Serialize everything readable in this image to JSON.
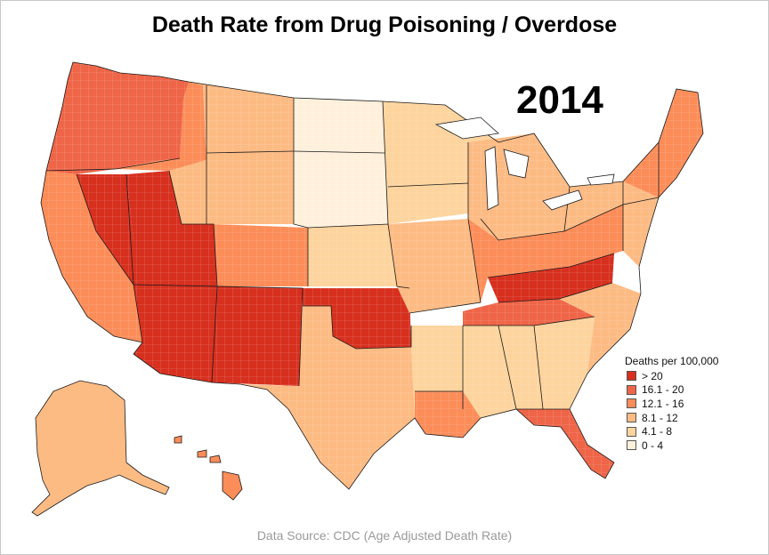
{
  "title": "Death Rate from Drug Poisoning / Overdose",
  "year": "2014",
  "legend": {
    "title": "Deaths per 100,000",
    "items": [
      {
        "label": "> 20",
        "color": "#d7301f"
      },
      {
        "label": "16.1 - 20",
        "color": "#ef6548"
      },
      {
        "label": "12.1 - 16",
        "color": "#fc8d59"
      },
      {
        "label": "8.1 - 12",
        "color": "#fdbb84"
      },
      {
        "label": "4.1 - 8",
        "color": "#fdd49e"
      },
      {
        "label": "0 - 4",
        "color": "#fff0dc"
      }
    ]
  },
  "source": "Data Source: CDC (Age Adjusted Death Rate)",
  "map_data": {
    "type": "choropleth",
    "regions": [
      {
        "region": "Pacific Northwest",
        "class": 1
      },
      {
        "region": "California",
        "class": 2
      },
      {
        "region": "Nevada",
        "class": 0
      },
      {
        "region": "Utah",
        "class": 0
      },
      {
        "region": "Idaho",
        "class": 2
      },
      {
        "region": "Montana",
        "class": 3
      },
      {
        "region": "Wyoming",
        "class": 3
      },
      {
        "region": "Colorado",
        "class": 2
      },
      {
        "region": "Arizona",
        "class": 0
      },
      {
        "region": "New Mexico",
        "class": 0
      },
      {
        "region": "Northern Plains",
        "class": 5
      },
      {
        "region": "Kansas",
        "class": 4
      },
      {
        "region": "Oklahoma",
        "class": 0
      },
      {
        "region": "Texas",
        "class": 3
      },
      {
        "region": "Upper Midwest",
        "class": 4
      },
      {
        "region": "Iowa & Missouri",
        "class": 3
      },
      {
        "region": "Great Lakes",
        "class": 3
      },
      {
        "region": "Ohio Valley",
        "class": 2
      },
      {
        "region": "Kentucky & West Virginia",
        "class": 0
      },
      {
        "region": "Tennessee",
        "class": 1
      },
      {
        "region": "Deep South",
        "class": 4
      },
      {
        "region": "Louisiana",
        "class": 2
      },
      {
        "region": "Florida",
        "class": 1
      },
      {
        "region": "Carolinas",
        "class": 3
      },
      {
        "region": "Mid-Atlantic",
        "class": 3
      },
      {
        "region": "New England",
        "class": 2
      },
      {
        "region": "Alaska",
        "class": 3
      },
      {
        "region": "Hawaii",
        "class": 2
      }
    ]
  }
}
